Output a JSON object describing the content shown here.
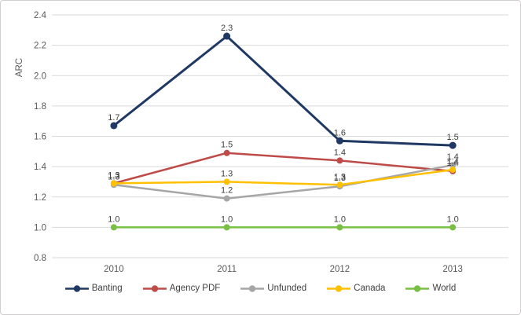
{
  "chart_data": {
    "type": "line",
    "title": "",
    "xlabel": "",
    "ylabel": "ARC",
    "categories": [
      "2010",
      "2011",
      "2012",
      "2013"
    ],
    "yticks": [
      "0.8",
      "1.0",
      "1.2",
      "1.4",
      "1.6",
      "1.8",
      "2.0",
      "2.2",
      "2.4"
    ],
    "ylim": [
      0.8,
      2.4
    ],
    "grid": true,
    "legend_position": "bottom",
    "series": [
      {
        "name": "Banting",
        "color": "#1F3864",
        "values": [
          1.67,
          2.26,
          1.57,
          1.54
        ],
        "labels": [
          "1.7",
          "2.3",
          "1.6",
          "1.5"
        ]
      },
      {
        "name": "Agency PDF",
        "color": "#BE4B48",
        "values": [
          1.29,
          1.49,
          1.44,
          1.37
        ],
        "labels": [
          "1.3",
          "1.5",
          "1.4",
          "1.4"
        ]
      },
      {
        "name": "Unfunded",
        "color": "#A6A6A6",
        "values": [
          1.28,
          1.19,
          1.27,
          1.41
        ],
        "labels": [
          "1.3",
          "1.2",
          "1.3",
          "1.4"
        ]
      },
      {
        "name": "Canada",
        "color": "#FFC000",
        "values": [
          1.29,
          1.3,
          1.28,
          1.38
        ],
        "labels": [
          "1.3",
          "1.3",
          "1.3",
          "1.4"
        ]
      },
      {
        "name": "World",
        "color": "#77C043",
        "values": [
          1.0,
          1.0,
          1.0,
          1.0
        ],
        "labels": [
          "1.0",
          "1.0",
          "1.0",
          "1.0"
        ]
      }
    ]
  },
  "colors": {
    "grid": "#D9D9D9",
    "tick_text": "#595959",
    "data_label": "#404040",
    "legend_text": "#404040",
    "frame_border": "#D0CECE",
    "background": "#FFFFFF"
  }
}
